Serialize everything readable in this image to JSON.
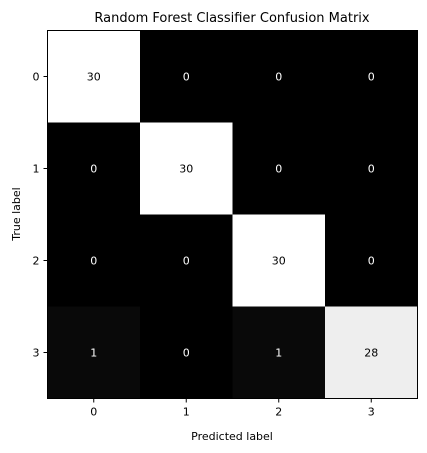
{
  "chart_data": {
    "type": "heatmap",
    "title": "Random Forest Classifier Confusion Matrix",
    "xlabel": "Predicted label",
    "ylabel": "True label",
    "x_categories": [
      "0",
      "1",
      "2",
      "3"
    ],
    "y_categories": [
      "0",
      "1",
      "2",
      "3"
    ],
    "values": [
      [
        30,
        0,
        0,
        0
      ],
      [
        0,
        30,
        0,
        0
      ],
      [
        0,
        0,
        30,
        0
      ],
      [
        1,
        0,
        1,
        28
      ]
    ],
    "colormap": "gray",
    "vmin": 0,
    "vmax": 30,
    "grid": false,
    "legend": "none"
  }
}
